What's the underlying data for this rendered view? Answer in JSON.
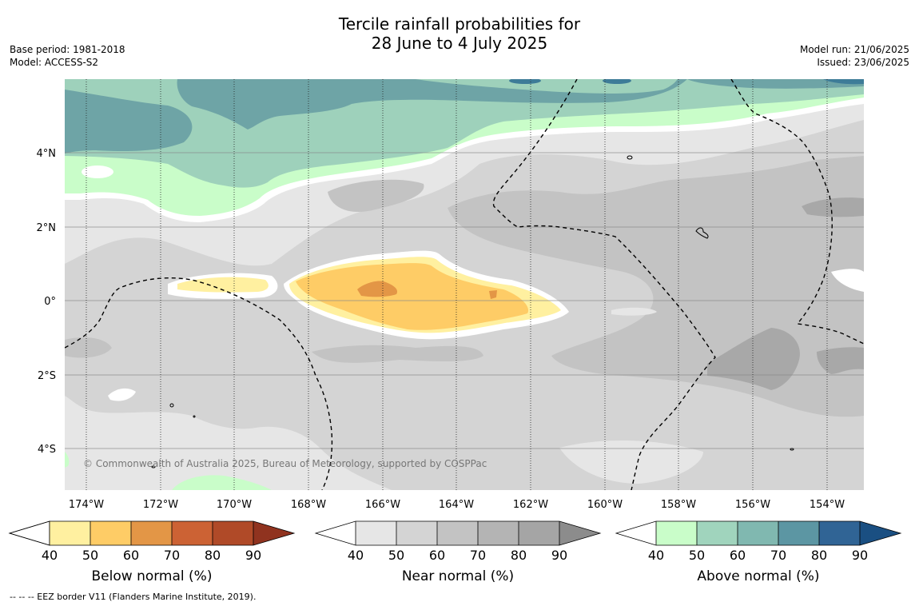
{
  "title": {
    "line1": "Tercile rainfall probabilities for",
    "line2": "28 June to 4 July 2025"
  },
  "meta": {
    "base_period": "Base period: 1981-2018",
    "model": "Model: ACCESS-S2",
    "model_run": "Model run: 21/06/2025",
    "issued": "Issued: 23/06/2025"
  },
  "map": {
    "lon_range": [
      -174.6,
      -152.9
    ],
    "lat_range": [
      -5.1,
      5.9
    ],
    "longitude_ticks": [
      {
        "value": -174,
        "label": "174°W"
      },
      {
        "value": -172,
        "label": "172°W"
      },
      {
        "value": -170,
        "label": "170°W"
      },
      {
        "value": -168,
        "label": "168°W"
      },
      {
        "value": -166,
        "label": "166°W"
      },
      {
        "value": -164,
        "label": "164°W"
      },
      {
        "value": -162,
        "label": "162°W"
      },
      {
        "value": -160,
        "label": "160°W"
      },
      {
        "value": -158,
        "label": "158°W"
      },
      {
        "value": -156,
        "label": "156°W"
      },
      {
        "value": -154,
        "label": "154°W"
      }
    ],
    "latitude_ticks": [
      {
        "value": 4,
        "label": "4°N"
      },
      {
        "value": 2,
        "label": "2°N"
      },
      {
        "value": 0,
        "label": "0°"
      },
      {
        "value": -2,
        "label": "2°S"
      },
      {
        "value": -4,
        "label": "4°S"
      }
    ],
    "copyright": "© Commonwealth of Australia 2025, Bureau of Meteorology, supported by COSPPac"
  },
  "colorbars": [
    {
      "title": "Below normal (%)",
      "ticks": [
        "40",
        "50",
        "60",
        "70",
        "80",
        "90"
      ],
      "colors": [
        "#fff0a0",
        "#fecc66",
        "#e39646",
        "#cc6234",
        "#b04a28",
        "#90331f"
      ]
    },
    {
      "title": "Near normal (%)",
      "ticks": [
        "40",
        "50",
        "60",
        "70",
        "80",
        "90"
      ],
      "colors": [
        "#e6e6e6",
        "#d4d4d4",
        "#c3c3c3",
        "#b4b4b4",
        "#a5a5a5",
        "#8c8c8c"
      ]
    },
    {
      "title": "Above normal (%)",
      "ticks": [
        "40",
        "50",
        "60",
        "70",
        "80",
        "90"
      ],
      "colors": [
        "#c9fdc9",
        "#a0d4bd",
        "#80b8b0",
        "#5c96a3",
        "#306495",
        "#1a4f82"
      ]
    }
  ],
  "colors": {
    "near_40": "#e6e6e6",
    "near_50": "#d4d4d4",
    "near_60": "#c3c3c3",
    "near_70": "#a8a8a8",
    "above_40": "#c9fdc9",
    "above_50": "#9ed1bb",
    "above_60": "#6ea4a6",
    "above_70": "#3e7c98",
    "below_40": "#fff0a0",
    "below_50": "#fecc66",
    "below_60": "#e39646"
  },
  "footnote": "--  --  -- EEZ border V11 (Flanders Marine Institute, 2019)."
}
